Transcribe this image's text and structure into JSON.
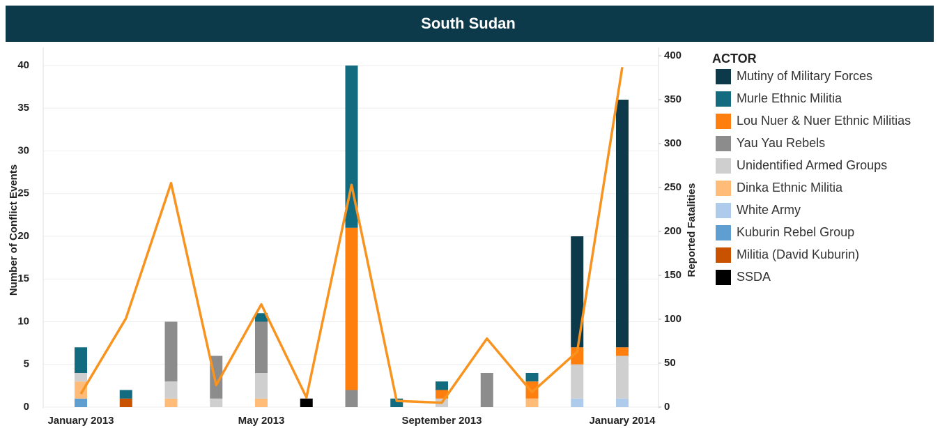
{
  "chart_data": {
    "type": "bar",
    "stacked": true,
    "title": "South Sudan",
    "y_label": "Number of Conflict Events",
    "y2_label": "Reported Fatalities",
    "legend_title": "ACTOR",
    "categories": [
      "January 2013",
      null,
      null,
      null,
      "May 2013",
      null,
      null,
      null,
      "September 2013",
      null,
      null,
      null,
      "January 2014"
    ],
    "ylim": [
      0,
      40
    ],
    "yticks": [
      0,
      5,
      10,
      15,
      20,
      25,
      30,
      35,
      40
    ],
    "y2lim": [
      0,
      400
    ],
    "y2ticks": [
      0,
      50,
      100,
      150,
      200,
      250,
      300,
      350,
      400
    ],
    "grid": true,
    "series": [
      {
        "name": "Mutiny of Military Forces",
        "color": "#0d3a4a",
        "values": [
          null,
          null,
          null,
          null,
          null,
          null,
          null,
          null,
          null,
          null,
          null,
          13,
          29
        ]
      },
      {
        "name": "Murle Ethnic Militia",
        "color": "#136b80",
        "values": [
          3,
          1,
          null,
          null,
          1,
          null,
          19,
          1,
          1,
          null,
          1,
          null,
          null
        ]
      },
      {
        "name": "Lou Nuer & Nuer Ethnic Militias",
        "color": "#ff7f0e",
        "values": [
          null,
          null,
          null,
          null,
          null,
          null,
          19,
          null,
          1,
          null,
          2,
          2,
          1
        ]
      },
      {
        "name": "Yau Yau Rebels",
        "color": "#8c8c8c",
        "values": [
          null,
          null,
          7,
          5,
          6,
          null,
          2,
          null,
          null,
          4,
          null,
          null,
          null
        ]
      },
      {
        "name": "Unidentified Armed Groups",
        "color": "#cfcfcf",
        "values": [
          1,
          null,
          2,
          1,
          3,
          null,
          null,
          null,
          1,
          null,
          null,
          4,
          5
        ]
      },
      {
        "name": "Dinka Ethnic Militia",
        "color": "#ffbb78",
        "values": [
          2,
          null,
          1,
          null,
          1,
          null,
          null,
          null,
          null,
          null,
          1,
          null,
          null
        ]
      },
      {
        "name": "White Army",
        "color": "#aecbec",
        "values": [
          null,
          null,
          null,
          null,
          null,
          null,
          null,
          null,
          null,
          null,
          null,
          1,
          1
        ]
      },
      {
        "name": "Kuburin Rebel Group",
        "color": "#5f9ed1",
        "values": [
          1,
          null,
          null,
          null,
          null,
          null,
          null,
          null,
          null,
          null,
          null,
          null,
          null
        ]
      },
      {
        "name": "Militia (David Kuburin)",
        "color": "#c85200",
        "values": [
          null,
          1,
          null,
          null,
          null,
          null,
          null,
          null,
          null,
          null,
          null,
          null,
          null
        ]
      },
      {
        "name": "SSDA",
        "color": "#000000",
        "values": [
          null,
          null,
          null,
          null,
          null,
          1,
          null,
          null,
          null,
          null,
          null,
          null,
          null
        ]
      }
    ],
    "line": {
      "axis": "y2",
      "color": "#f7931e",
      "values": [
        15,
        101,
        255,
        25,
        117,
        11,
        253,
        7,
        5,
        78,
        17,
        63,
        387
      ]
    }
  }
}
